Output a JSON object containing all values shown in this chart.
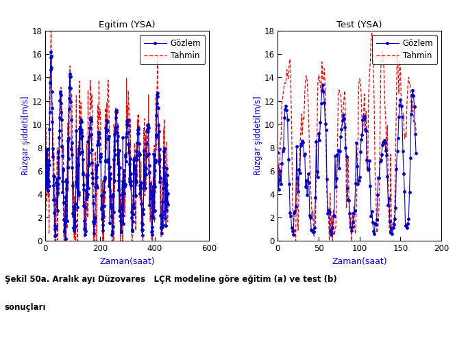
{
  "title_left": "Egitim (YSA)",
  "title_right": "Test (YSA)",
  "ylabel": "Rüzgar şiddeti[m/s]",
  "xlabel": "Zaman(saat)",
  "legend_obs": "Gözlem",
  "legend_pred": "Tahmin",
  "obs_color": "#0000cc",
  "pred_color": "#ff0000",
  "title_color": "#000000",
  "ylabel_color": "#0000ee",
  "xlabel_color": "#0000ee",
  "tick_color": "#000000",
  "ylim": [
    0,
    18
  ],
  "xlim_train": [
    0,
    600
  ],
  "xlim_test": [
    0,
    200
  ],
  "yticks": [
    0,
    2,
    4,
    6,
    8,
    10,
    12,
    14,
    16,
    18
  ],
  "xticks_train": [
    0,
    200,
    400,
    600
  ],
  "xticks_test": [
    0,
    50,
    100,
    150,
    200
  ],
  "caption_line1": "Şekil 50a. Aralık ayı Düzovares   LÇR modeline göre eğitim (a) ve test (b)",
  "caption_line2": "sonuçları"
}
